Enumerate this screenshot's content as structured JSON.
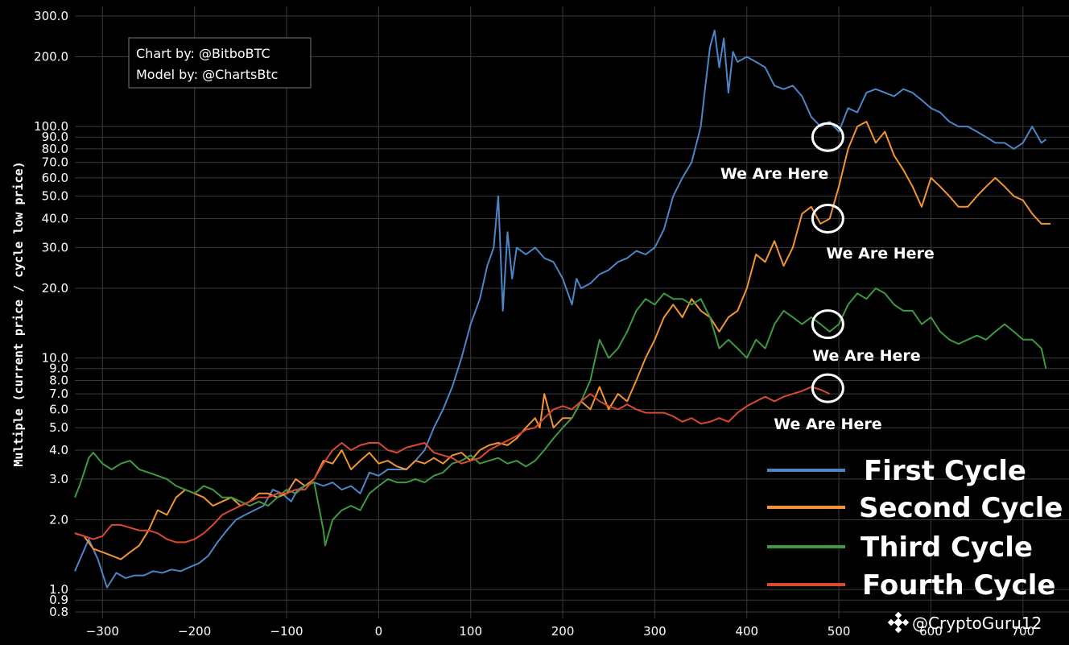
{
  "chart_data": {
    "type": "line",
    "title": "",
    "xlabel": "",
    "ylabel": "Multiple (current price / cycle low price)",
    "y_scale": "log",
    "xlim": [
      -330,
      750
    ],
    "ylim": [
      0.75,
      330
    ],
    "grid": true,
    "x_ticks": [
      -300,
      -200,
      -100,
      0,
      100,
      200,
      300,
      400,
      500,
      600,
      700
    ],
    "x_tick_labels": [
      "−300",
      "−200",
      "−100",
      "0",
      "100",
      "200",
      "300",
      "400",
      "500",
      "600",
      "700"
    ],
    "y_ticks": [
      0.8,
      0.9,
      1.0,
      2.0,
      3.0,
      4.0,
      5.0,
      6.0,
      7.0,
      8.0,
      9.0,
      10.0,
      20.0,
      30.0,
      40.0,
      50.0,
      60.0,
      70.0,
      80.0,
      90.0,
      100.0,
      200.0,
      300.0
    ],
    "y_tick_labels": [
      "0.8",
      "0.9",
      "1.0",
      "2.0",
      "3.0",
      "4.0",
      "5.0",
      "6.0",
      "7.0",
      "8.0",
      "9.0",
      "10.0",
      "20.0",
      "30.0",
      "40.0",
      "50.0",
      "60.0",
      "70.0",
      "80.0",
      "90.0",
      "100.0",
      "200.0",
      "300.0"
    ],
    "legend_position": "bottom-right",
    "series": [
      {
        "name": "First Cycle",
        "color": "#4a86c8",
        "x": [
          -330,
          -315,
          -305,
          -295,
          -285,
          -275,
          -265,
          -255,
          -245,
          -235,
          -225,
          -215,
          -205,
          -195,
          -185,
          -175,
          -165,
          -155,
          -145,
          -135,
          -125,
          -115,
          -105,
          -95,
          -88,
          -80,
          -70,
          -60,
          -50,
          -40,
          -30,
          -20,
          -10,
          0,
          10,
          20,
          30,
          40,
          50,
          60,
          70,
          80,
          90,
          100,
          110,
          118,
          125,
          130,
          135,
          140,
          145,
          150,
          160,
          170,
          180,
          190,
          200,
          210,
          215,
          220,
          230,
          240,
          250,
          260,
          270,
          280,
          290,
          300,
          310,
          320,
          330,
          340,
          350,
          355,
          360,
          365,
          370,
          375,
          380,
          385,
          390,
          400,
          410,
          420,
          430,
          440,
          450,
          460,
          470,
          480,
          490,
          500,
          510,
          520,
          530,
          540,
          550,
          560,
          570,
          580,
          590,
          600,
          610,
          620,
          630,
          640,
          650,
          660,
          670,
          680,
          690,
          700,
          710,
          720,
          725
        ],
        "y": [
          1.2,
          1.65,
          1.35,
          1.02,
          1.18,
          1.12,
          1.15,
          1.15,
          1.2,
          1.18,
          1.22,
          1.2,
          1.25,
          1.3,
          1.4,
          1.6,
          1.8,
          2.0,
          2.1,
          2.2,
          2.3,
          2.7,
          2.6,
          2.4,
          2.7,
          2.8,
          2.9,
          2.8,
          2.9,
          2.7,
          2.8,
          2.6,
          3.2,
          3.1,
          3.3,
          3.3,
          3.3,
          3.6,
          4.0,
          5.0,
          6.0,
          7.5,
          10.0,
          14.0,
          18.0,
          25.0,
          30.0,
          50.0,
          16.0,
          35.0,
          22.0,
          30.0,
          28.0,
          30.0,
          27.0,
          26.0,
          22.0,
          17.0,
          22.0,
          20.0,
          21.0,
          23.0,
          24.0,
          26.0,
          27.0,
          29.0,
          28.0,
          30.0,
          36.0,
          50.0,
          60.0,
          70.0,
          100.0,
          150.0,
          220.0,
          260.0,
          180.0,
          240.0,
          140.0,
          210.0,
          190.0,
          200.0,
          190.0,
          180.0,
          150.0,
          145.0,
          150.0,
          135.0,
          110.0,
          100.0,
          105.0,
          95.0,
          120.0,
          115.0,
          140.0,
          145.0,
          140.0,
          135.0,
          145.0,
          140.0,
          130.0,
          120.0,
          115.0,
          105.0,
          100.0,
          100.0,
          95.0,
          90.0,
          85.0,
          85.0,
          80.0,
          85.0,
          100.0,
          85.0,
          88.0
        ]
      },
      {
        "name": "Second Cycle",
        "color": "#f39433",
        "x": [
          -330,
          -320,
          -310,
          -300,
          -290,
          -280,
          -270,
          -260,
          -250,
          -240,
          -230,
          -220,
          -210,
          -200,
          -190,
          -180,
          -170,
          -160,
          -150,
          -140,
          -130,
          -120,
          -110,
          -100,
          -90,
          -80,
          -70,
          -60,
          -50,
          -40,
          -30,
          -20,
          -10,
          0,
          10,
          20,
          30,
          40,
          50,
          60,
          70,
          80,
          90,
          100,
          110,
          120,
          130,
          140,
          150,
          160,
          170,
          175,
          180,
          190,
          200,
          210,
          220,
          230,
          240,
          250,
          260,
          270,
          280,
          290,
          300,
          310,
          320,
          330,
          340,
          350,
          360,
          370,
          380,
          390,
          400,
          410,
          420,
          430,
          440,
          450,
          460,
          470,
          480,
          490,
          500,
          510,
          520,
          530,
          540,
          550,
          560,
          570,
          580,
          590,
          600,
          610,
          620,
          630,
          640,
          650,
          660,
          670,
          680,
          690,
          700,
          710,
          720,
          730
        ],
        "y": [
          1.75,
          1.7,
          1.5,
          1.45,
          1.4,
          1.35,
          1.45,
          1.55,
          1.8,
          2.2,
          2.1,
          2.5,
          2.7,
          2.6,
          2.5,
          2.3,
          2.4,
          2.5,
          2.3,
          2.4,
          2.6,
          2.6,
          2.5,
          2.6,
          3.0,
          2.8,
          3.0,
          3.6,
          3.5,
          4.0,
          3.3,
          3.6,
          3.9,
          3.5,
          3.6,
          3.4,
          3.3,
          3.6,
          3.5,
          3.7,
          3.5,
          3.8,
          3.9,
          3.6,
          4.0,
          4.2,
          4.3,
          4.2,
          4.5,
          5.0,
          5.5,
          5.0,
          7.0,
          5.0,
          5.5,
          5.5,
          6.5,
          6.0,
          7.5,
          6.0,
          7.0,
          6.5,
          8.0,
          10.0,
          12.0,
          15.0,
          17.0,
          15.0,
          18.0,
          16.0,
          15.0,
          13.0,
          15.0,
          16.0,
          20.0,
          28.0,
          26.0,
          32.0,
          25.0,
          30.0,
          42.0,
          45.0,
          38.0,
          40.0,
          55.0,
          80.0,
          100.0,
          105.0,
          85.0,
          95.0,
          75.0,
          65.0,
          55.0,
          45.0,
          60.0,
          55.0,
          50.0,
          45.0,
          45.0,
          50.0,
          55.0,
          60.0,
          55.0,
          50.0,
          48.0,
          42.0,
          38.0,
          38.0
        ]
      },
      {
        "name": "Third Cycle",
        "color": "#3d9a40",
        "x": [
          -330,
          -325,
          -320,
          -315,
          -310,
          -300,
          -290,
          -280,
          -270,
          -260,
          -250,
          -240,
          -230,
          -220,
          -210,
          -200,
          -190,
          -180,
          -170,
          -160,
          -150,
          -140,
          -130,
          -120,
          -110,
          -100,
          -90,
          -80,
          -70,
          -60,
          -58,
          -50,
          -40,
          -30,
          -20,
          -10,
          0,
          10,
          20,
          30,
          40,
          50,
          60,
          70,
          80,
          90,
          100,
          110,
          120,
          130,
          140,
          150,
          160,
          170,
          180,
          190,
          200,
          210,
          220,
          230,
          240,
          250,
          260,
          270,
          280,
          290,
          300,
          310,
          320,
          330,
          340,
          350,
          360,
          370,
          380,
          390,
          400,
          410,
          420,
          430,
          440,
          450,
          460,
          470,
          480,
          490,
          500,
          510,
          520,
          530,
          540,
          550,
          560,
          570,
          580,
          590,
          600,
          610,
          620,
          630,
          640,
          650,
          660,
          670,
          680,
          690,
          700,
          710,
          720,
          725
        ],
        "y": [
          2.5,
          2.8,
          3.2,
          3.7,
          3.9,
          3.5,
          3.3,
          3.5,
          3.6,
          3.3,
          3.2,
          3.1,
          3.0,
          2.8,
          2.7,
          2.6,
          2.8,
          2.7,
          2.5,
          2.5,
          2.4,
          2.3,
          2.4,
          2.3,
          2.5,
          2.7,
          2.6,
          2.8,
          2.9,
          1.8,
          1.55,
          2.0,
          2.2,
          2.3,
          2.2,
          2.6,
          2.8,
          3.0,
          2.9,
          2.9,
          3.0,
          2.9,
          3.1,
          3.2,
          3.5,
          3.6,
          3.8,
          3.5,
          3.6,
          3.7,
          3.5,
          3.6,
          3.4,
          3.6,
          4.0,
          4.5,
          5.0,
          5.5,
          6.5,
          8.0,
          12.0,
          10.0,
          11.0,
          13.0,
          16.0,
          18.0,
          17.0,
          19.0,
          18.0,
          18.0,
          17.0,
          18.0,
          15.0,
          11.0,
          12.0,
          11.0,
          10.0,
          12.0,
          11.0,
          14.0,
          16.0,
          15.0,
          14.0,
          15.0,
          14.0,
          13.0,
          14.0,
          17.0,
          19.0,
          18.0,
          20.0,
          19.0,
          17.0,
          16.0,
          16.0,
          14.0,
          15.0,
          13.0,
          12.0,
          11.5,
          12.0,
          12.5,
          12.0,
          13.0,
          14.0,
          13.0,
          12.0,
          12.0,
          11.0,
          9.0
        ]
      },
      {
        "name": "Fourth Cycle",
        "color": "#d94a30",
        "x": [
          -330,
          -320,
          -310,
          -300,
          -290,
          -280,
          -270,
          -260,
          -250,
          -240,
          -230,
          -220,
          -210,
          -200,
          -190,
          -180,
          -170,
          -160,
          -150,
          -140,
          -130,
          -120,
          -110,
          -100,
          -90,
          -80,
          -70,
          -60,
          -50,
          -40,
          -30,
          -20,
          -10,
          0,
          10,
          20,
          30,
          40,
          50,
          60,
          70,
          80,
          90,
          100,
          110,
          120,
          130,
          140,
          150,
          160,
          170,
          180,
          190,
          200,
          210,
          220,
          230,
          240,
          250,
          260,
          270,
          280,
          290,
          300,
          310,
          320,
          330,
          340,
          350,
          360,
          370,
          380,
          390,
          400,
          410,
          420,
          430,
          440,
          450,
          460,
          470,
          480,
          490
        ],
        "y": [
          1.75,
          1.7,
          1.65,
          1.7,
          1.9,
          1.9,
          1.85,
          1.8,
          1.8,
          1.75,
          1.65,
          1.6,
          1.6,
          1.65,
          1.75,
          1.9,
          2.1,
          2.2,
          2.3,
          2.4,
          2.5,
          2.5,
          2.6,
          2.6,
          2.7,
          2.7,
          3.0,
          3.5,
          4.0,
          4.3,
          4.0,
          4.2,
          4.3,
          4.3,
          4.0,
          3.9,
          4.1,
          4.2,
          4.3,
          3.9,
          3.8,
          3.7,
          3.5,
          3.6,
          3.7,
          4.0,
          4.2,
          4.4,
          4.6,
          4.9,
          5.0,
          5.5,
          6.0,
          6.2,
          6.0,
          6.5,
          7.0,
          6.5,
          6.2,
          6.0,
          6.3,
          6.0,
          5.8,
          5.8,
          5.8,
          5.6,
          5.3,
          5.5,
          5.2,
          5.3,
          5.5,
          5.3,
          5.8,
          6.2,
          6.5,
          6.8,
          6.5,
          6.8,
          7.0,
          7.2,
          7.5,
          7.3,
          7.0
        ]
      }
    ],
    "annotations": [
      {
        "text": "We Are Here",
        "circle_x": 488,
        "circle_y": 90,
        "label_x": 430,
        "label_y": 63
      },
      {
        "text": "We Are Here",
        "circle_x": 488,
        "circle_y": 40,
        "label_x": 545,
        "label_y": 28.5
      },
      {
        "text": "We Are Here",
        "circle_x": 488,
        "circle_y": 14,
        "label_x": 530,
        "label_y": 10.3
      },
      {
        "text": "We Are Here",
        "circle_x": 488,
        "circle_y": 7.4,
        "label_x": 488,
        "label_y": 5.2
      }
    ]
  },
  "credits": {
    "line1": "Chart by: @BitboBTC",
    "line2": "Model by: @ChartsBtc"
  },
  "watermark": "@CryptoGuru12",
  "colors": {
    "background": "#000000",
    "grid": "#3a3a3a"
  }
}
